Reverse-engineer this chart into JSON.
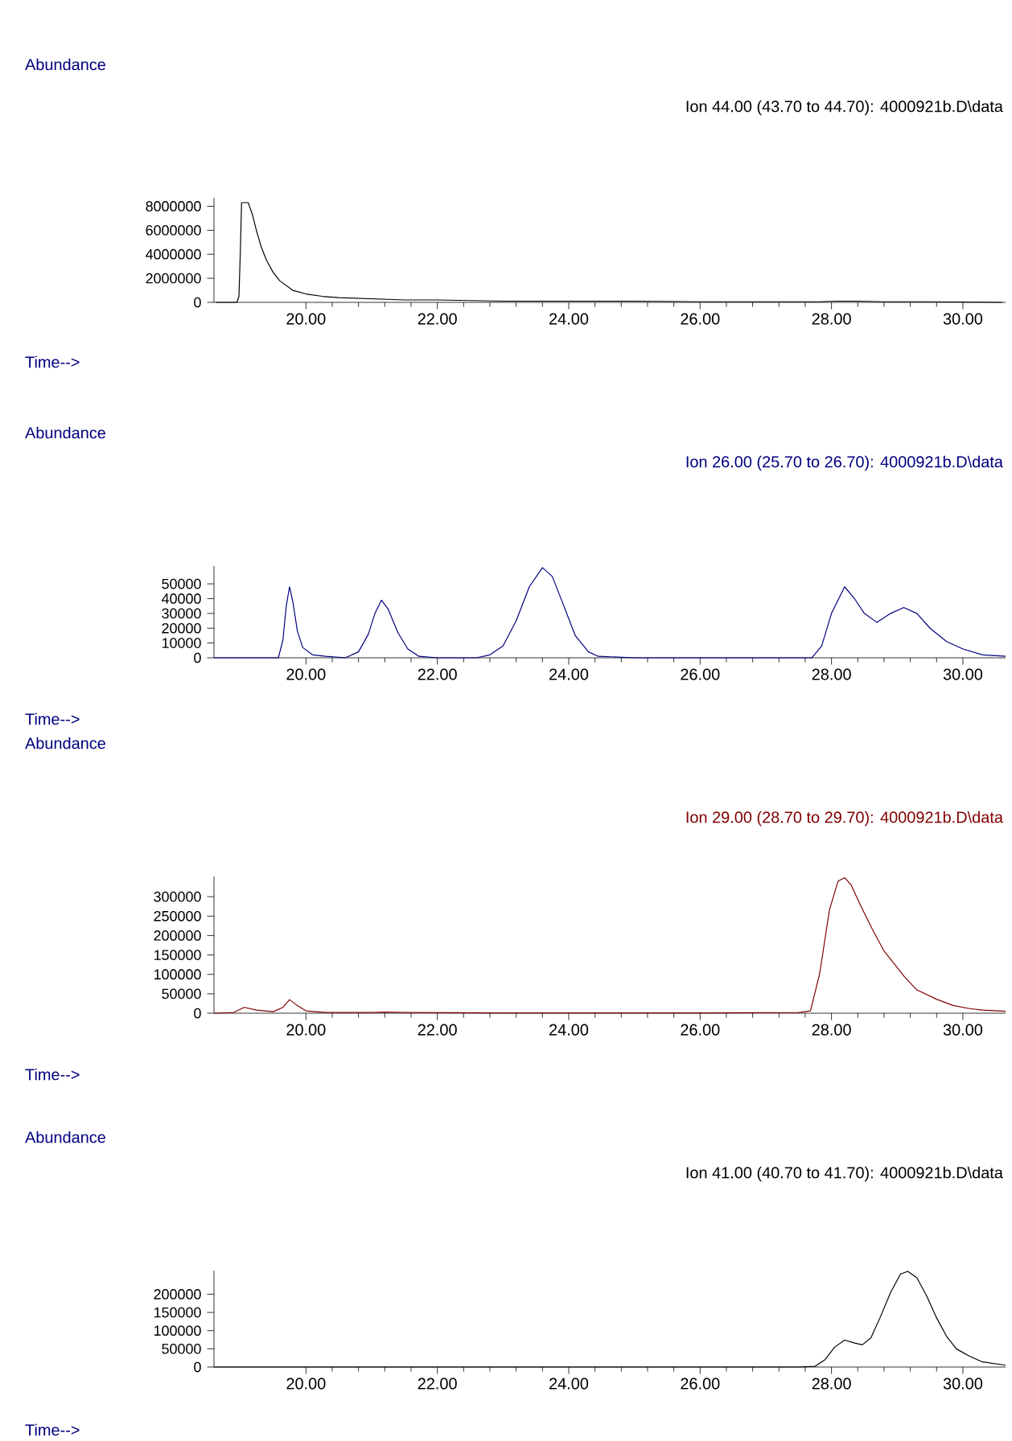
{
  "chart_data": [
    {
      "type": "line",
      "title": "Ion 44.00 (43.70 to 44.70): 4000921b.D\\data",
      "xlabel": "Time-->",
      "ylabel": "Abundance",
      "x": [
        18.63,
        18.95,
        18.98,
        19.0,
        19.02,
        19.12,
        19.18,
        19.25,
        19.32,
        19.4,
        19.5,
        19.6,
        19.7,
        19.8,
        20.0,
        20.25,
        20.5,
        21.0,
        21.5,
        22.0,
        23.0,
        24.0,
        25.0,
        26.0,
        27.0,
        27.8,
        28.1,
        28.4,
        28.8,
        29.5,
        30.6
      ],
      "series": [
        {
          "color": "#000000",
          "values": [
            0,
            0,
            500000,
            4000000,
            8300000,
            8300000,
            7400000,
            5900000,
            4600000,
            3500000,
            2500000,
            1800000,
            1400000,
            1000000,
            700000,
            500000,
            400000,
            300000,
            200000,
            200000,
            100000,
            100000,
            100000,
            50000,
            50000,
            50000,
            100000,
            100000,
            50000,
            50000,
            0
          ]
        }
      ],
      "xlim": [
        18.6,
        30.65
      ],
      "xticks": [
        {
          "value": 20,
          "label": "20.00"
        },
        {
          "value": 22,
          "label": "22.00"
        },
        {
          "value": 24,
          "label": "24.00"
        },
        {
          "value": 26,
          "label": "26.00"
        },
        {
          "value": 28,
          "label": "28.00"
        },
        {
          "value": 30,
          "label": "30.00"
        }
      ],
      "ylim": [
        0,
        8700000
      ],
      "yticks": [
        0,
        2000000,
        4000000,
        6000000,
        8000000
      ]
    },
    {
      "type": "line",
      "title": "Ion 26.00 (25.70 to 26.70): 4000921b.D\\data",
      "xlabel": "Time-->",
      "ylabel": "Abundance",
      "x": [
        18.6,
        19.5,
        19.58,
        19.65,
        19.7,
        19.75,
        19.8,
        19.87,
        19.95,
        20.1,
        20.3,
        20.6,
        20.8,
        20.95,
        21.05,
        21.15,
        21.25,
        21.4,
        21.55,
        21.72,
        22.0,
        22.6,
        22.8,
        23.0,
        23.2,
        23.4,
        23.6,
        23.75,
        23.9,
        24.1,
        24.3,
        24.45,
        25.0,
        27.0,
        27.7,
        27.85,
        28.0,
        28.2,
        28.35,
        28.5,
        28.69,
        28.9,
        29.1,
        29.3,
        29.5,
        29.75,
        30.0,
        30.3,
        30.65
      ],
      "series": [
        {
          "color": "#000080",
          "values": [
            0,
            0,
            0,
            12000,
            35000,
            48000,
            38000,
            18000,
            7000,
            2000,
            1000,
            0,
            4000,
            16000,
            30000,
            39000,
            33000,
            17000,
            6000,
            1000,
            0,
            0,
            2000,
            8000,
            25000,
            48000,
            61000,
            55000,
            38000,
            15000,
            4000,
            1000,
            0,
            0,
            0,
            8000,
            30000,
            48000,
            40000,
            30000,
            24000,
            30000,
            34000,
            30000,
            20000,
            11000,
            6000,
            2000,
            1000
          ]
        }
      ],
      "xlim": [
        18.6,
        30.65
      ],
      "xticks": [
        {
          "value": 20,
          "label": "20.00"
        },
        {
          "value": 22,
          "label": "22.00"
        },
        {
          "value": 24,
          "label": "24.00"
        },
        {
          "value": 26,
          "label": "26.00"
        },
        {
          "value": 28,
          "label": "28.00"
        },
        {
          "value": 30,
          "label": "30.00"
        }
      ],
      "ylim": [
        0,
        62000
      ],
      "yticks": [
        0,
        10000,
        20000,
        30000,
        40000,
        50000
      ]
    },
    {
      "type": "line",
      "title": "Ion 29.00 (28.70 to 29.70): 4000921b.D\\data",
      "xlabel": "Time-->",
      "ylabel": "Abundance",
      "x": [
        18.6,
        18.9,
        19.06,
        19.25,
        19.5,
        19.65,
        19.75,
        19.85,
        20.0,
        20.3,
        21.0,
        21.2,
        21.5,
        23.0,
        26.0,
        27.5,
        27.68,
        27.82,
        27.97,
        28.1,
        28.2,
        28.3,
        28.45,
        28.62,
        28.8,
        29.0,
        29.11,
        29.3,
        29.6,
        29.85,
        30.1,
        30.3,
        30.65
      ],
      "series": [
        {
          "color": "#800000",
          "values": [
            0,
            2000,
            15000,
            8000,
            4000,
            15000,
            35000,
            22000,
            6000,
            2000,
            2000,
            3000,
            2000,
            1000,
            1000,
            2000,
            6000,
            102000,
            267000,
            340000,
            349000,
            330000,
            275000,
            217000,
            160000,
            118000,
            94000,
            60000,
            36000,
            20000,
            12000,
            8000,
            5000
          ]
        }
      ],
      "xlim": [
        18.6,
        30.65
      ],
      "xticks": [
        {
          "value": 20,
          "label": "20.00"
        },
        {
          "value": 22,
          "label": "22.00"
        },
        {
          "value": 24,
          "label": "24.00"
        },
        {
          "value": 26,
          "label": "26.00"
        },
        {
          "value": 28,
          "label": "28.00"
        },
        {
          "value": 30,
          "label": "30.00"
        }
      ],
      "ylim": [
        0,
        352000
      ],
      "yticks": [
        0,
        50000,
        100000,
        150000,
        200000,
        250000,
        300000
      ]
    },
    {
      "type": "line",
      "title": "Ion 41.00 (40.70 to 41.70): 4000921b.D\\data",
      "xlabel": "Time-->",
      "ylabel": "Abundance",
      "x": [
        18.6,
        27.5,
        27.75,
        27.9,
        28.05,
        28.2,
        28.35,
        28.47,
        28.6,
        28.75,
        28.9,
        29.05,
        29.16,
        29.3,
        29.45,
        29.6,
        29.75,
        29.9,
        30.1,
        30.3,
        30.65
      ],
      "series": [
        {
          "color": "#000000",
          "values": [
            0,
            0,
            2000,
            20000,
            55000,
            74000,
            66000,
            61000,
            80000,
            140000,
            205000,
            255000,
            263000,
            245000,
            195000,
            135000,
            85000,
            50000,
            30000,
            14000,
            5000
          ]
        }
      ],
      "xlim": [
        18.6,
        30.65
      ],
      "xticks": [
        {
          "value": 20,
          "label": "20.00"
        },
        {
          "value": 22,
          "label": "22.00"
        },
        {
          "value": 24,
          "label": "24.00"
        },
        {
          "value": 26,
          "label": "26.00"
        },
        {
          "value": 28,
          "label": "28.00"
        },
        {
          "value": 30,
          "label": "30.00"
        }
      ],
      "ylim": [
        0,
        265000
      ],
      "yticks": [
        0,
        50000,
        100000,
        150000,
        200000
      ]
    }
  ]
}
